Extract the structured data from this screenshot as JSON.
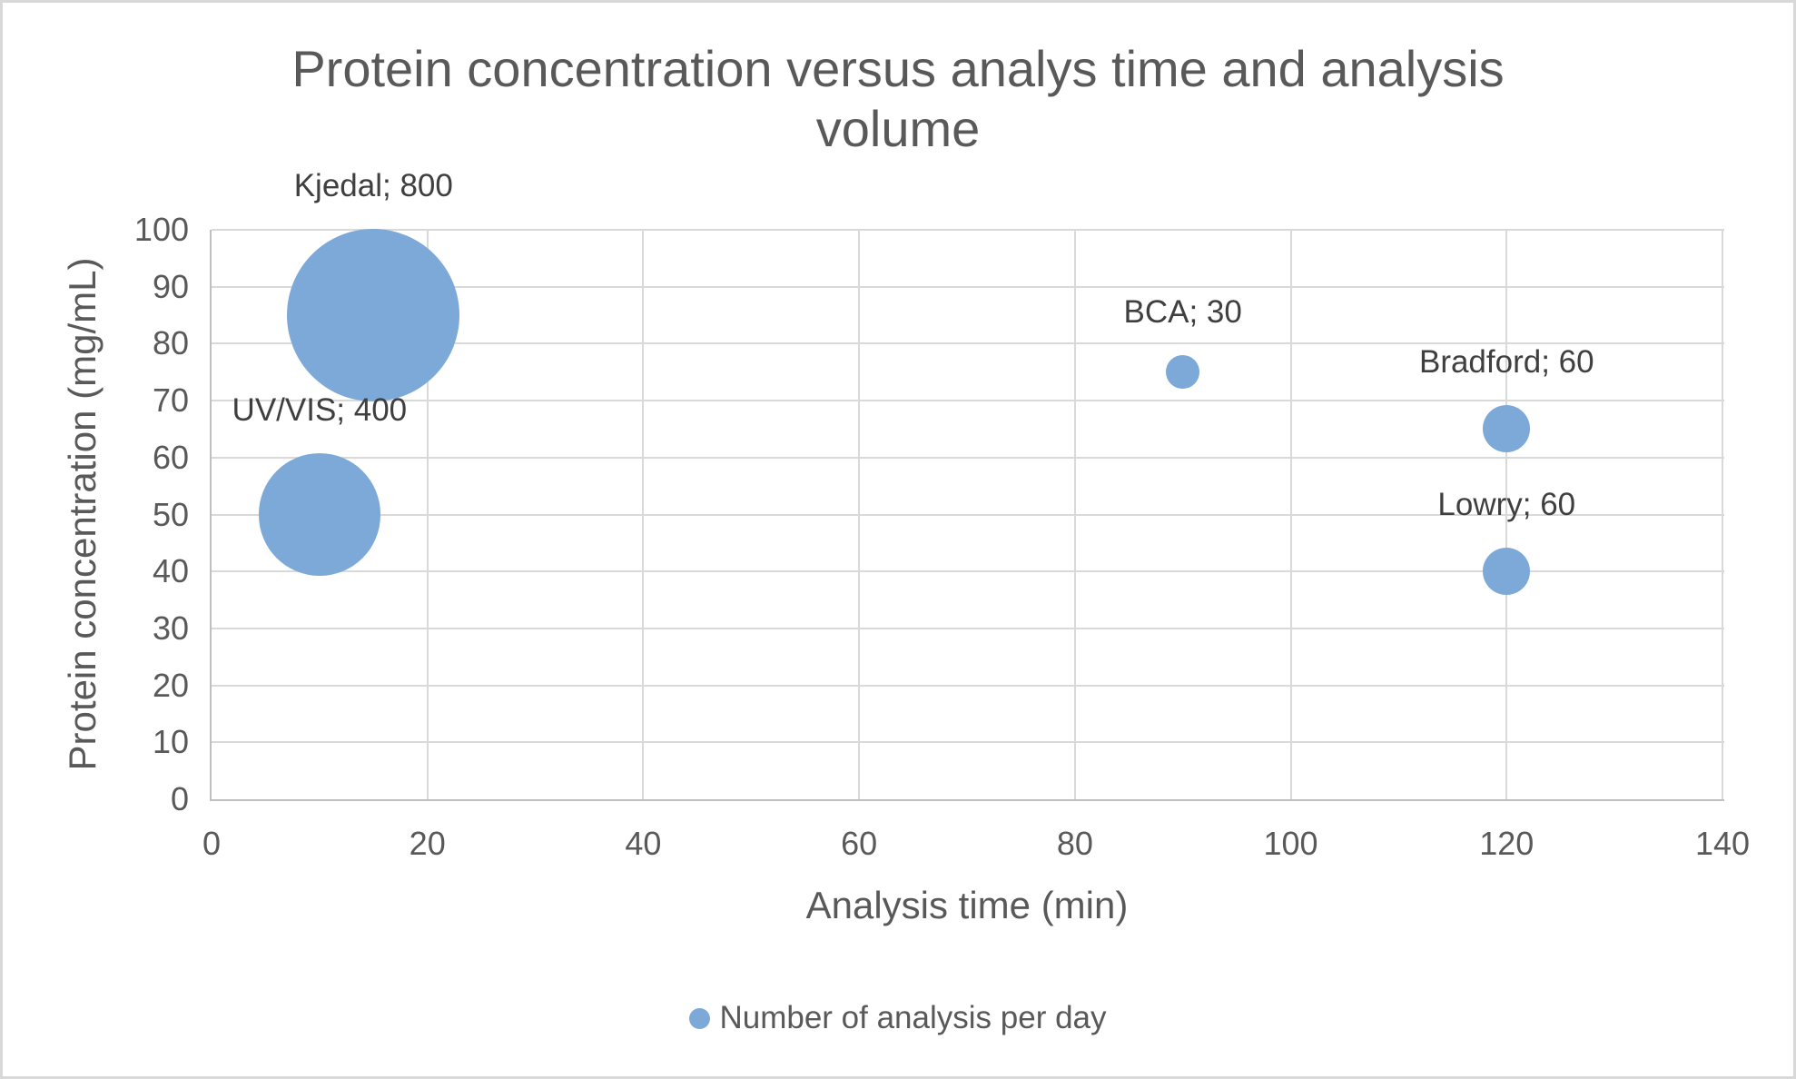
{
  "chart": {
    "title": {
      "text": "Protein concentration versus analys time and analysis volume",
      "lines": [
        "Protein concentration versus analys time and analysis",
        "volume"
      ]
    },
    "x_axis": {
      "title": "Analysis time (min)"
    },
    "y_axis": {
      "title": "Protein concentration (mg/mL)"
    },
    "legend": {
      "label": "Number of analysis per day",
      "marker": "circle-icon"
    },
    "colors": {
      "bubble": "#7da9d8",
      "gridline": "#d9d9d9",
      "axis_line": "#bfbfbf",
      "text": "#595959",
      "data_label_text": "#3f3f3f"
    }
  },
  "chart_data": {
    "type": "scatter",
    "subtype": "bubble",
    "title": "Protein concentration versus analys time and analysis volume",
    "xlabel": "Analysis time (min)",
    "ylabel": "Protein concentration (mg/mL)",
    "xlim": [
      0,
      140
    ],
    "ylim": [
      0,
      100
    ],
    "x_ticks": [
      0,
      20,
      40,
      60,
      80,
      100,
      120,
      140
    ],
    "y_ticks": [
      0,
      10,
      20,
      30,
      40,
      50,
      60,
      70,
      80,
      90,
      100
    ],
    "grid": true,
    "legend_position": "bottom",
    "size_legend": "bubble area proportional to number of analysis per day",
    "series": [
      {
        "name": "Number of analysis per day",
        "points": [
          {
            "method": "Kjedal",
            "x": 15,
            "y": 85,
            "size": 800,
            "label": "Kjedal; 800"
          },
          {
            "method": "UV/VIS",
            "x": 10,
            "y": 50,
            "size": 400,
            "label": "UV/VIS; 400"
          },
          {
            "method": "BCA",
            "x": 90,
            "y": 75,
            "size": 30,
            "label": "BCA; 30"
          },
          {
            "method": "Bradford",
            "x": 120,
            "y": 65,
            "size": 60,
            "label": "Bradford; 60"
          },
          {
            "method": "Lowry",
            "x": 120,
            "y": 40,
            "size": 60,
            "label": "Lowry; 60"
          }
        ]
      }
    ]
  }
}
